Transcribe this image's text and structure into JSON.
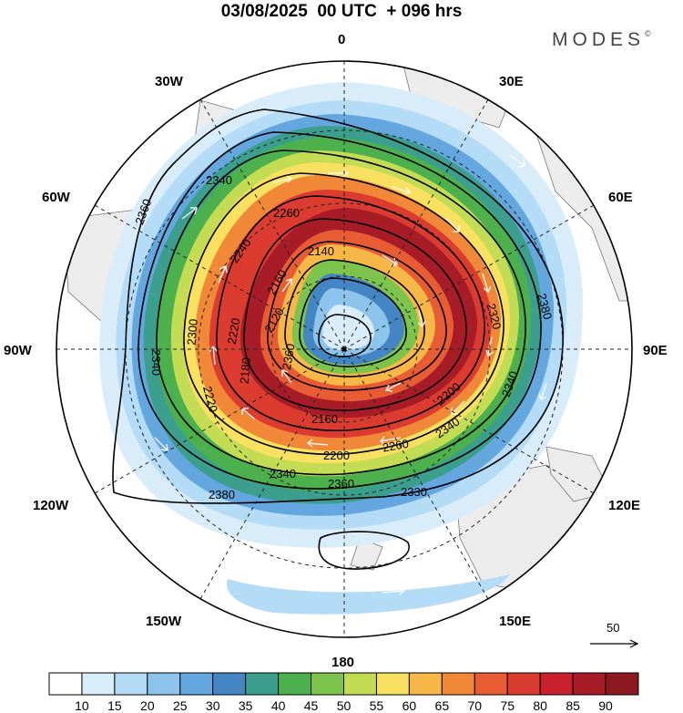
{
  "title": "03/08/2025  00 UTC  + 096 hrs",
  "brand": "MODES",
  "brand_mark": "©",
  "longitude_labels": {
    "lon_0": "0",
    "lon_30e": "30E",
    "lon_60e": "60E",
    "lon_90e": "90E",
    "lon_120e": "120E",
    "lon_150e": "150E",
    "lon_180": "180",
    "lon_150w": "150W",
    "lon_120w": "120W",
    "lon_90w": "90W",
    "lon_60w": "60W",
    "lon_30w": "30W"
  },
  "contour_labels": [
    "2380",
    "2380",
    "2360",
    "2360",
    "2340",
    "2340",
    "2340",
    "2330",
    "2320",
    "2300",
    "2260",
    "2260",
    "2240",
    "2220",
    "2220",
    "2200",
    "2200",
    "2180",
    "2160",
    "2160",
    "2140",
    "2120",
    "2360",
    "2340"
  ],
  "reference_vector": {
    "label": "50"
  },
  "colorbar": {
    "colors": [
      "#ffffff",
      "#d8ecfa",
      "#b4dcf6",
      "#8cc4ec",
      "#64a6de",
      "#4486c4",
      "#3c9e8c",
      "#4cb14c",
      "#7cc44c",
      "#c4dc54",
      "#f8e060",
      "#f8b848",
      "#f08838",
      "#e85c34",
      "#dc3c30",
      "#c8202c",
      "#a81c28",
      "#8c1820"
    ],
    "labels": [
      "10",
      "15",
      "20",
      "25",
      "30",
      "35",
      "40",
      "45",
      "50",
      "55",
      "60",
      "65",
      "70",
      "75",
      "80",
      "85",
      "90"
    ]
  }
}
